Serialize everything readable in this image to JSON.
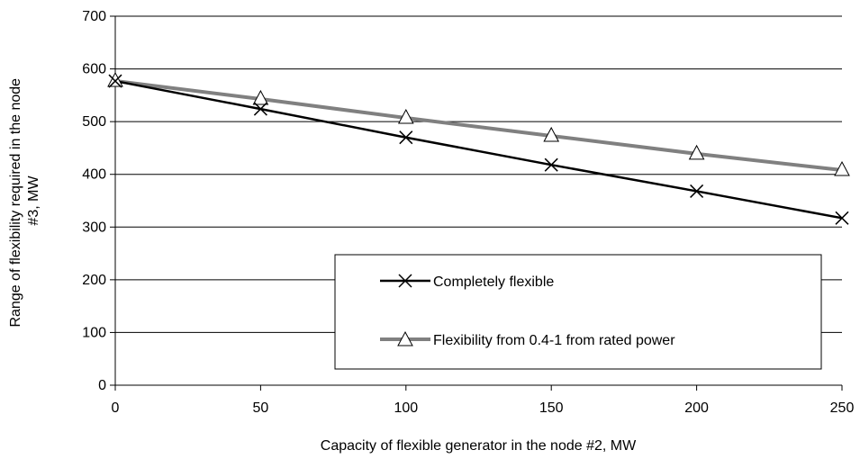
{
  "chart_data": {
    "type": "line",
    "title": "",
    "xlabel": "Capacity of flexible generator in the node #2, MW",
    "ylabel_lines": [
      "Range of flexibility required in the node",
      "#3, MW"
    ],
    "x": [
      0,
      50,
      100,
      150,
      200,
      250
    ],
    "xlim": [
      0,
      250
    ],
    "ylim": [
      0,
      700
    ],
    "x_ticks": [
      0,
      50,
      100,
      150,
      200,
      250
    ],
    "y_ticks": [
      0,
      100,
      200,
      300,
      400,
      500,
      600,
      700
    ],
    "grid": "horizontal",
    "legend_position": "bottom-right",
    "series": [
      {
        "name": "Completely flexible",
        "values": [
          577,
          524,
          470,
          418,
          368,
          317
        ],
        "color": "#000000",
        "marker": "x"
      },
      {
        "name": "Flexibility from 0.4-1 from rated power",
        "values": [
          577,
          543,
          507,
          473,
          439,
          408
        ],
        "color": "#808080",
        "marker": "triangle"
      }
    ]
  }
}
